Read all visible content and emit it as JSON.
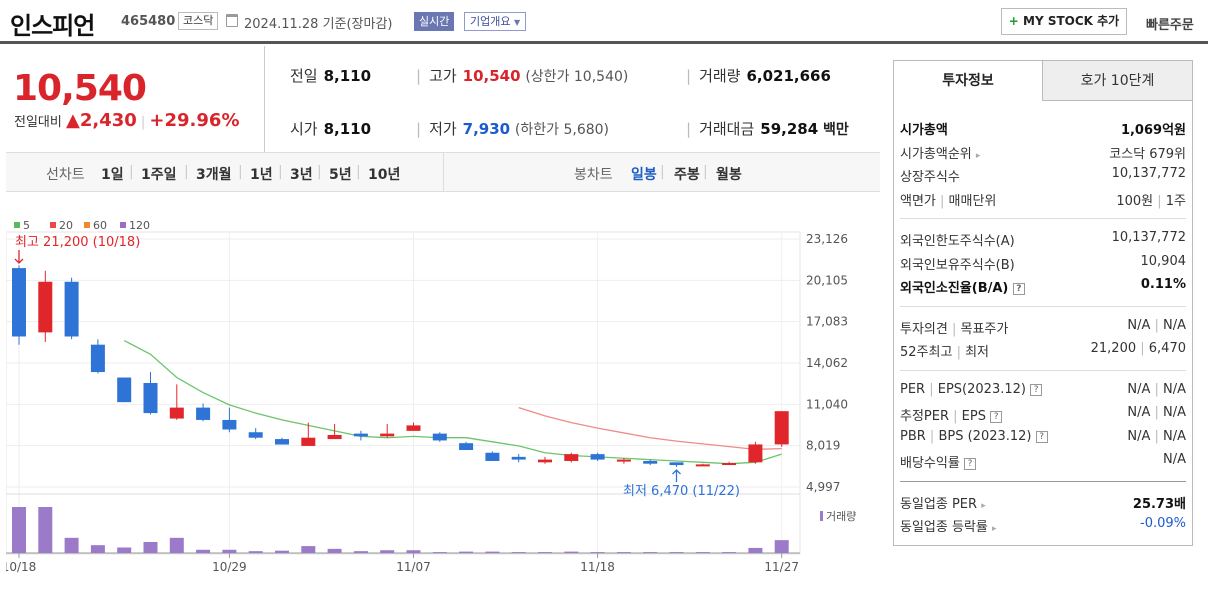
{
  "header": {
    "stock_name": "인스피언",
    "stock_code": "465480",
    "market": "코스닥",
    "date_text": "2024.11.28 기준(장마감)",
    "realtime_label": "실시간",
    "company_overview_label": "기업개요",
    "mystock_label": "MY STOCK 추가",
    "quick_order_label": "빠른주문"
  },
  "quote": {
    "price": "10,540",
    "change_label": "전일대비",
    "change": "2,430",
    "change_pct": "+29.96%",
    "prev_close_label": "전일",
    "prev_close": "8,110",
    "open_label": "시가",
    "open": "8,110",
    "high_label": "고가",
    "high": "10,540",
    "upper_limit_label": "(상한가 10,540)",
    "low_label": "저가",
    "low": "7,930",
    "lower_limit_label": "(하한가 5,680)",
    "volume_label": "거래량",
    "volume": "6,021,666",
    "amount_label": "거래대금",
    "amount": "59,284",
    "amount_unit": "백만"
  },
  "period_bar": {
    "line_chart_label": "선차트",
    "line_periods": [
      "1일",
      "1주일",
      "3개월",
      "1년",
      "3년",
      "5년",
      "10년"
    ],
    "candle_label": "봉차트",
    "candle_periods": [
      "일봉",
      "주봉",
      "월봉"
    ],
    "candle_selected": "일봉"
  },
  "chart_data": {
    "type": "candlestick",
    "legend": [
      "5",
      "20",
      "60",
      "120"
    ],
    "legend_colors": [
      "#5cb85c",
      "#e84a4a",
      "#f0882d",
      "#9b6bc5"
    ],
    "y_ticks": [
      "23,126",
      "20,105",
      "17,083",
      "14,062",
      "11,040",
      "8,019",
      "4,997"
    ],
    "ylim": [
      4997,
      23126
    ],
    "x_labels": [
      "10/18",
      "10/29",
      "11/07",
      "11/18",
      "11/27"
    ],
    "max_label": "최고 21,200 (10/18)",
    "min_label": "최저 6,470 (11/22)",
    "volume_label": "거래량",
    "candles": [
      {
        "o": 21000,
        "h": 21200,
        "l": 15400,
        "c": 16000
      },
      {
        "o": 16300,
        "h": 20800,
        "l": 15600,
        "c": 20000
      },
      {
        "o": 20000,
        "h": 20300,
        "l": 15800,
        "c": 16000
      },
      {
        "o": 15400,
        "h": 15800,
        "l": 13300,
        "c": 13400
      },
      {
        "o": 13000,
        "h": 13000,
        "l": 11200,
        "c": 11200
      },
      {
        "o": 12600,
        "h": 13400,
        "l": 10300,
        "c": 10400
      },
      {
        "o": 10000,
        "h": 12500,
        "l": 9900,
        "c": 10800
      },
      {
        "o": 10800,
        "h": 11100,
        "l": 9800,
        "c": 9900
      },
      {
        "o": 9900,
        "h": 10800,
        "l": 9000,
        "c": 9200
      },
      {
        "o": 9000,
        "h": 9300,
        "l": 8500,
        "c": 8600
      },
      {
        "o": 8500,
        "h": 8600,
        "l": 8100,
        "c": 8100
      },
      {
        "o": 8000,
        "h": 9700,
        "l": 8000,
        "c": 8600
      },
      {
        "o": 8500,
        "h": 9600,
        "l": 8500,
        "c": 8800
      },
      {
        "o": 8900,
        "h": 9100,
        "l": 8400,
        "c": 8700
      },
      {
        "o": 8700,
        "h": 9600,
        "l": 8600,
        "c": 8900
      },
      {
        "o": 9100,
        "h": 9700,
        "l": 9100,
        "c": 9500
      },
      {
        "o": 8900,
        "h": 9000,
        "l": 8300,
        "c": 8400
      },
      {
        "o": 8200,
        "h": 8300,
        "l": 7700,
        "c": 7700
      },
      {
        "o": 7500,
        "h": 7600,
        "l": 6900,
        "c": 6900
      },
      {
        "o": 7200,
        "h": 7400,
        "l": 6800,
        "c": 7000
      },
      {
        "o": 6800,
        "h": 7200,
        "l": 6700,
        "c": 7000
      },
      {
        "o": 6900,
        "h": 7500,
        "l": 6800,
        "c": 7400
      },
      {
        "o": 7400,
        "h": 7500,
        "l": 6900,
        "c": 7000
      },
      {
        "o": 6900,
        "h": 7100,
        "l": 6700,
        "c": 7000
      },
      {
        "o": 6900,
        "h": 7000,
        "l": 6600,
        "c": 6700
      },
      {
        "o": 6800,
        "h": 6800,
        "l": 6470,
        "c": 6600
      },
      {
        "o": 6600,
        "h": 6700,
        "l": 6550,
        "c": 6650
      },
      {
        "o": 6700,
        "h": 6850,
        "l": 6600,
        "c": 6750
      },
      {
        "o": 6800,
        "h": 8300,
        "l": 6700,
        "c": 8110
      },
      {
        "o": 8110,
        "h": 10540,
        "l": 7930,
        "c": 10540
      }
    ],
    "ma5": [
      null,
      null,
      null,
      null,
      15700,
      14700,
      13000,
      11900,
      11000,
      10400,
      9900,
      9500,
      9100,
      8700,
      8600,
      8700,
      8600,
      8600,
      8300,
      8000,
      7500,
      7300,
      7200,
      7100,
      7000,
      6900,
      6800,
      6700,
      6800,
      7400
    ],
    "ma20": [
      null,
      null,
      null,
      null,
      null,
      null,
      null,
      null,
      null,
      null,
      null,
      null,
      null,
      null,
      null,
      null,
      null,
      null,
      null,
      10800,
      10200,
      9700,
      9300,
      8950,
      8600,
      8350,
      8150,
      7950,
      7750,
      7800
    ],
    "volume_rel": [
      1.0,
      1.0,
      0.33,
      0.17,
      0.12,
      0.24,
      0.33,
      0.07,
      0.07,
      0.04,
      0.05,
      0.15,
      0.09,
      0.04,
      0.06,
      0.06,
      0.02,
      0.03,
      0.03,
      0.02,
      0.02,
      0.03,
      0.02,
      0.02,
      0.02,
      0.02,
      0.02,
      0.02,
      0.11,
      0.28
    ]
  },
  "panel": {
    "tab_invest": "투자정보",
    "tab_orderbook": "호가 10단계",
    "market_cap_label": "시가총액",
    "market_cap": "1,069억원",
    "market_cap_rank_label": "시가총액순위",
    "market_cap_rank": "코스닥 679위",
    "listed_shares_label": "상장주식수",
    "listed_shares": "10,137,772",
    "par_label": "액면가",
    "unit_label": "매매단위",
    "par_value": "100원",
    "trade_unit": "1주",
    "foreign_limit_label": "외국인한도주식수(A)",
    "foreign_limit": "10,137,772",
    "foreign_hold_label": "외국인보유주식수(B)",
    "foreign_hold": "10,904",
    "foreign_ratio_label": "외국인소진율(B/A)",
    "foreign_ratio": "0.11%",
    "opinion_label": "투자의견",
    "target_label": "목표주가",
    "opinion": "N/A",
    "target": "N/A",
    "wk52_high_label": "52주최고",
    "wk52_low_label": "최저",
    "wk52_high": "21,200",
    "wk52_low": "6,470",
    "per_label": "PER",
    "eps_label": "EPS(2023.12)",
    "per": "N/A",
    "eps": "N/A",
    "est_per_label": "추정PER",
    "est_eps_label": "EPS",
    "est_per": "N/A",
    "est_eps": "N/A",
    "pbr_label": "PBR",
    "bps_label": "BPS (2023.12)",
    "pbr": "N/A",
    "bps": "N/A",
    "div_label": "배당수익률",
    "div": "N/A",
    "sector_per_label": "동일업종 PER",
    "sector_per": "25.73배",
    "sector_chg_label": "동일업종 등락률",
    "sector_chg": "-0.09%"
  }
}
